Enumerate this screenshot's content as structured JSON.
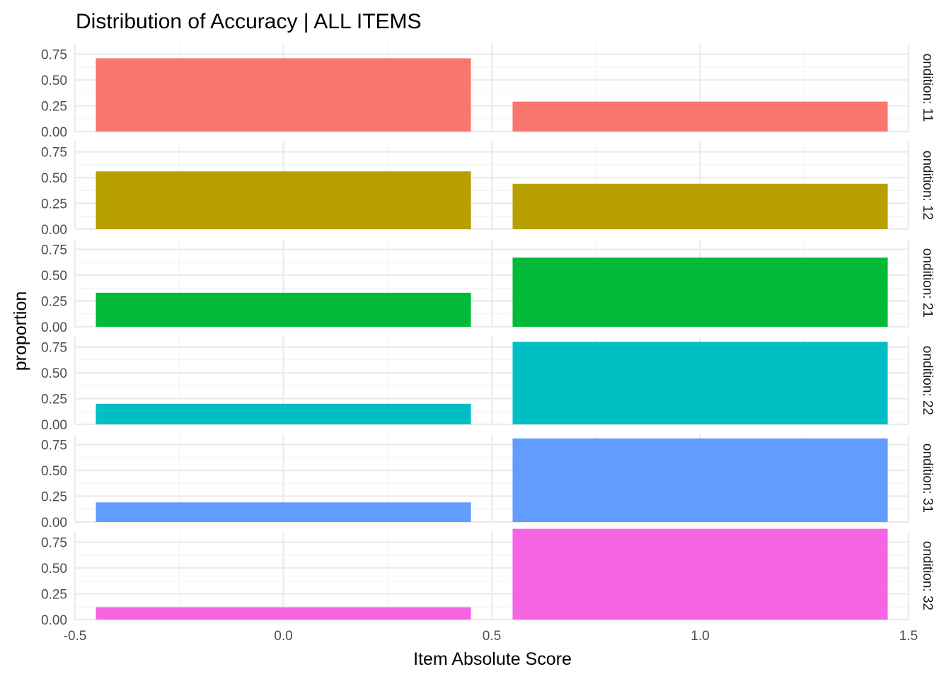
{
  "chart_data": {
    "type": "bar",
    "title": "Distribution of Accuracy  | ALL ITEMS",
    "xlabel": "Item Absolute Score",
    "ylabel": "proportion",
    "x_categories": [
      0,
      1
    ],
    "bar_width": 0.9,
    "xlim": [
      -0.5,
      1.5
    ],
    "x_ticks": [
      "-0.5",
      "0.0",
      "0.5",
      "1.0",
      "1.5"
    ],
    "ylim": [
      0,
      0.85
    ],
    "y_ticks": [
      "0.00",
      "0.25",
      "0.50",
      "0.75"
    ],
    "grid": true,
    "facet_strip_position": "right",
    "panels": [
      {
        "label": "ondition: 11",
        "color": "#F8766D",
        "values": [
          0.71,
          0.29
        ]
      },
      {
        "label": "ondition: 12",
        "color": "#B79F00",
        "values": [
          0.56,
          0.44
        ]
      },
      {
        "label": "ondition: 21",
        "color": "#00BA38",
        "values": [
          0.33,
          0.67
        ]
      },
      {
        "label": "ondition: 22",
        "color": "#00BFC4",
        "values": [
          0.2,
          0.8
        ]
      },
      {
        "label": "ondition: 31",
        "color": "#619CFF",
        "values": [
          0.19,
          0.81
        ]
      },
      {
        "label": "ondition: 32",
        "color": "#F564E3",
        "values": [
          0.12,
          0.88
        ]
      }
    ]
  }
}
